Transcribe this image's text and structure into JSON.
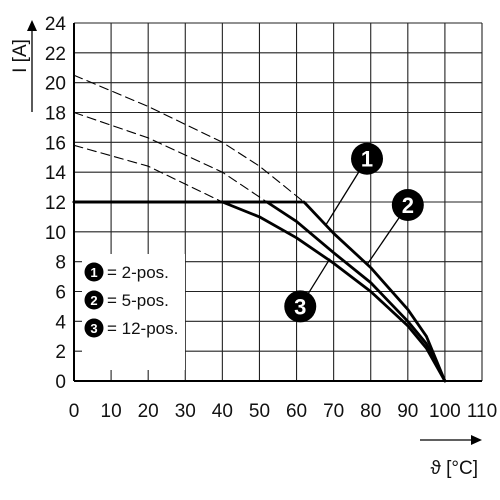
{
  "chart_data": {
    "type": "line",
    "xlabel": "ϑ [°C]",
    "ylabel": "I [A]",
    "xlim": [
      0,
      110
    ],
    "ylim": [
      0,
      24
    ],
    "xticks": [
      0,
      10,
      20,
      30,
      40,
      50,
      60,
      70,
      80,
      90,
      100,
      110
    ],
    "yticks": [
      0,
      2,
      4,
      6,
      8,
      10,
      12,
      14,
      16,
      18,
      20,
      22,
      24
    ],
    "grid": true,
    "legend_position": "bottom-left",
    "legend": [
      {
        "marker": "1",
        "label": "= 2-pos."
      },
      {
        "marker": "2",
        "label": "= 5-pos."
      },
      {
        "marker": "3",
        "label": "= 12-pos."
      }
    ],
    "series": [
      {
        "marker": "1",
        "style": "solid",
        "points": [
          [
            0,
            12
          ],
          [
            62,
            12
          ],
          [
            70,
            9.9
          ],
          [
            80,
            7.6
          ],
          [
            90,
            4.8
          ],
          [
            95,
            3.0
          ],
          [
            100,
            0
          ]
        ]
      },
      {
        "marker": "2",
        "style": "solid",
        "points": [
          [
            0,
            12
          ],
          [
            52,
            12
          ],
          [
            60,
            10.7
          ],
          [
            70,
            8.6
          ],
          [
            80,
            6.6
          ],
          [
            90,
            4.0
          ],
          [
            95,
            2.5
          ],
          [
            100,
            0
          ]
        ]
      },
      {
        "marker": "3",
        "style": "solid",
        "points": [
          [
            0,
            12
          ],
          [
            40,
            12
          ],
          [
            50,
            11.0
          ],
          [
            60,
            9.6
          ],
          [
            70,
            7.9
          ],
          [
            80,
            6.0
          ],
          [
            90,
            3.7
          ],
          [
            95,
            2.2
          ],
          [
            100,
            0
          ]
        ]
      },
      {
        "marker": "1",
        "style": "dashed",
        "points": [
          [
            0,
            20.5
          ],
          [
            20,
            18.4
          ],
          [
            40,
            16.0
          ],
          [
            50,
            14.4
          ],
          [
            62,
            12
          ]
        ]
      },
      {
        "marker": "2",
        "style": "dashed",
        "points": [
          [
            0,
            18.0
          ],
          [
            20,
            16.3
          ],
          [
            40,
            14.0
          ],
          [
            52,
            12
          ]
        ]
      },
      {
        "marker": "3",
        "style": "dashed",
        "points": [
          [
            0,
            15.8
          ],
          [
            20,
            14.4
          ],
          [
            40,
            12
          ]
        ]
      }
    ],
    "callouts": [
      {
        "marker": "1",
        "badge": [
          79,
          14.9
        ],
        "target": [
          68,
          10.5
        ]
      },
      {
        "marker": "2",
        "badge": [
          90,
          11.8
        ],
        "target": [
          79,
          7.8
        ]
      },
      {
        "marker": "3",
        "badge": [
          61,
          5.0
        ],
        "target": [
          69,
          8.2
        ]
      }
    ]
  }
}
